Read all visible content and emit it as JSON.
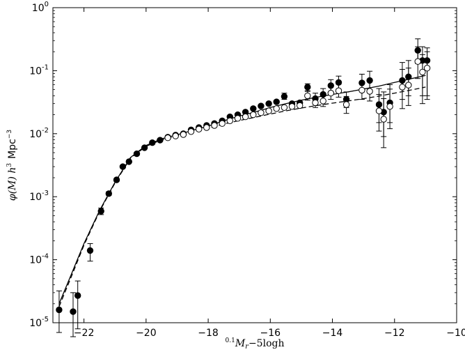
{
  "chart_data": {
    "type": "scatter",
    "xlabel": {
      "prefix": "0.1",
      "main": "M",
      "subscript": "r",
      "suffix": "−5logh"
    },
    "ylabel": {
      "phi": "φ(M) h",
      "exp3": "3",
      "unit": "Mpc",
      "exp_unit": "−3"
    },
    "xlim": [
      -23.0,
      -10.0
    ],
    "ylim_log10": [
      -5,
      0
    ],
    "xscale": "linear",
    "yscale": "log",
    "grid": false,
    "x_ticks": [
      {
        "value": -22,
        "label": "−22"
      },
      {
        "value": -20,
        "label": "−20"
      },
      {
        "value": -18,
        "label": "−18"
      },
      {
        "value": -16,
        "label": "−16"
      },
      {
        "value": -14,
        "label": "−14"
      },
      {
        "value": -12,
        "label": "−12"
      },
      {
        "value": -10,
        "label": "−10"
      }
    ],
    "y_ticks": [
      {
        "exp": -5,
        "base": "10",
        "sup": "-5"
      },
      {
        "exp": -4,
        "base": "10",
        "sup": "-4"
      },
      {
        "exp": -3,
        "base": "10",
        "sup": "-3"
      },
      {
        "exp": -2,
        "base": "10",
        "sup": "-2"
      },
      {
        "exp": -1,
        "base": "10",
        "sup": "-1"
      },
      {
        "exp": 0,
        "base": "10",
        "sup": "0"
      }
    ],
    "series": [
      {
        "marker": "filled-circle",
        "color": "#000000",
        "points": [
          {
            "x": -22.8,
            "y": 1.6e-05,
            "ylo": 7e-06,
            "yhi": 3.2e-05
          },
          {
            "x": -22.35,
            "y": 1.5e-05,
            "ylo": 6e-06,
            "yhi": 3e-05
          },
          {
            "x": -22.2,
            "y": 2.7e-05,
            "ylo": 8e-06,
            "yhi": 4.6e-05
          },
          {
            "x": -21.8,
            "y": 0.00014,
            "ylo": 9.5e-05,
            "yhi": 0.00018
          },
          {
            "x": -21.45,
            "y": 0.00059,
            "ylo": 0.00052,
            "yhi": 0.00066
          },
          {
            "x": -21.2,
            "y": 0.00112,
            "ylo": 0.00105,
            "yhi": 0.0012
          },
          {
            "x": -20.95,
            "y": 0.00185,
            "ylo": 0.00175,
            "yhi": 0.00195
          },
          {
            "x": -20.75,
            "y": 0.003
          },
          {
            "x": -20.55,
            "y": 0.0036
          },
          {
            "x": -20.3,
            "y": 0.0048
          },
          {
            "x": -20.05,
            "y": 0.006
          },
          {
            "x": -19.8,
            "y": 0.0072
          },
          {
            "x": -19.55,
            "y": 0.0079
          },
          {
            "x": -19.3,
            "y": 0.0088
          },
          {
            "x": -19.05,
            "y": 0.0095
          },
          {
            "x": -18.8,
            "y": 0.01
          },
          {
            "x": -18.55,
            "y": 0.0115
          },
          {
            "x": -18.3,
            "y": 0.0125
          },
          {
            "x": -18.05,
            "y": 0.0135
          },
          {
            "x": -17.8,
            "y": 0.0145
          },
          {
            "x": -17.55,
            "y": 0.016
          },
          {
            "x": -17.3,
            "y": 0.0185
          },
          {
            "x": -17.05,
            "y": 0.02
          },
          {
            "x": -16.8,
            "y": 0.022
          },
          {
            "x": -16.55,
            "y": 0.025
          },
          {
            "x": -16.3,
            "y": 0.0275
          },
          {
            "x": -16.05,
            "y": 0.03
          },
          {
            "x": -15.8,
            "y": 0.032
          },
          {
            "x": -15.55,
            "y": 0.039,
            "ylo": 0.035,
            "yhi": 0.044
          },
          {
            "x": -15.3,
            "y": 0.03
          },
          {
            "x": -15.05,
            "y": 0.031
          },
          {
            "x": -14.8,
            "y": 0.055,
            "ylo": 0.048,
            "yhi": 0.062
          },
          {
            "x": -14.55,
            "y": 0.036,
            "ylo": 0.029,
            "yhi": 0.044
          },
          {
            "x": -14.3,
            "y": 0.042,
            "ylo": 0.034,
            "yhi": 0.052
          },
          {
            "x": -14.05,
            "y": 0.058,
            "ylo": 0.046,
            "yhi": 0.072
          },
          {
            "x": -13.8,
            "y": 0.065,
            "ylo": 0.051,
            "yhi": 0.082
          },
          {
            "x": -13.55,
            "y": 0.035,
            "ylo": 0.026,
            "yhi": 0.046
          },
          {
            "x": -13.05,
            "y": 0.064,
            "ylo": 0.046,
            "yhi": 0.088
          },
          {
            "x": -12.8,
            "y": 0.07,
            "ylo": 0.05,
            "yhi": 0.098
          },
          {
            "x": -12.5,
            "y": 0.029,
            "ylo": 0.015,
            "yhi": 0.052
          },
          {
            "x": -12.35,
            "y": 0.022,
            "ylo": 0.009,
            "yhi": 0.046
          },
          {
            "x": -12.15,
            "y": 0.031,
            "ylo": 0.015,
            "yhi": 0.06
          },
          {
            "x": -11.75,
            "y": 0.07,
            "ylo": 0.035,
            "yhi": 0.135
          },
          {
            "x": -11.55,
            "y": 0.08,
            "ylo": 0.04,
            "yhi": 0.145
          },
          {
            "x": -11.25,
            "y": 0.21,
            "ylo": 0.13,
            "yhi": 0.32
          },
          {
            "x": -11.1,
            "y": 0.145,
            "ylo": 0.04,
            "yhi": 0.24
          },
          {
            "x": -10.95,
            "y": 0.145,
            "ylo": 0.04,
            "yhi": 0.23
          }
        ]
      },
      {
        "marker": "open-circle",
        "color": "#000000",
        "points": [
          {
            "x": -19.3,
            "y": 0.0086
          },
          {
            "x": -19.05,
            "y": 0.0092
          },
          {
            "x": -18.8,
            "y": 0.0097
          },
          {
            "x": -18.55,
            "y": 0.0108
          },
          {
            "x": -18.3,
            "y": 0.0118
          },
          {
            "x": -18.05,
            "y": 0.0125
          },
          {
            "x": -17.8,
            "y": 0.0135
          },
          {
            "x": -17.55,
            "y": 0.0145
          },
          {
            "x": -17.3,
            "y": 0.016
          },
          {
            "x": -17.05,
            "y": 0.0175
          },
          {
            "x": -16.8,
            "y": 0.0185
          },
          {
            "x": -16.55,
            "y": 0.02
          },
          {
            "x": -16.3,
            "y": 0.0215
          },
          {
            "x": -16.05,
            "y": 0.023
          },
          {
            "x": -15.8,
            "y": 0.025
          },
          {
            "x": -15.55,
            "y": 0.026
          },
          {
            "x": -15.3,
            "y": 0.027
          },
          {
            "x": -15.05,
            "y": 0.028
          },
          {
            "x": -14.8,
            "y": 0.04,
            "ylo": 0.034,
            "yhi": 0.047
          },
          {
            "x": -14.55,
            "y": 0.031,
            "ylo": 0.026,
            "yhi": 0.038
          },
          {
            "x": -14.3,
            "y": 0.033,
            "ylo": 0.027,
            "yhi": 0.041
          },
          {
            "x": -14.05,
            "y": 0.044,
            "ylo": 0.035,
            "yhi": 0.055
          },
          {
            "x": -13.8,
            "y": 0.048,
            "ylo": 0.038,
            "yhi": 0.061
          },
          {
            "x": -13.55,
            "y": 0.029,
            "ylo": 0.021,
            "yhi": 0.039
          },
          {
            "x": -13.05,
            "y": 0.049,
            "ylo": 0.035,
            "yhi": 0.068
          },
          {
            "x": -12.8,
            "y": 0.047,
            "ylo": 0.033,
            "yhi": 0.067
          },
          {
            "x": -12.5,
            "y": 0.023,
            "ylo": 0.011,
            "yhi": 0.042
          },
          {
            "x": -12.35,
            "y": 0.017,
            "ylo": 0.006,
            "yhi": 0.036
          },
          {
            "x": -12.15,
            "y": 0.027,
            "ylo": 0.012,
            "yhi": 0.051
          },
          {
            "x": -11.75,
            "y": 0.055,
            "ylo": 0.025,
            "yhi": 0.105
          },
          {
            "x": -11.55,
            "y": 0.059,
            "ylo": 0.028,
            "yhi": 0.11
          },
          {
            "x": -11.25,
            "y": 0.14,
            "ylo": 0.075,
            "yhi": 0.24
          },
          {
            "x": -11.1,
            "y": 0.095,
            "ylo": 0.03,
            "yhi": 0.18
          },
          {
            "x": -10.95,
            "y": 0.11,
            "ylo": 0.035,
            "yhi": 0.2
          }
        ]
      },
      {
        "line": "solid",
        "color": "#000000",
        "points": [
          {
            "x": -22.8,
            "y": 2e-05
          },
          {
            "x": -22.4,
            "y": 6e-05
          },
          {
            "x": -22.0,
            "y": 0.00018
          },
          {
            "x": -21.5,
            "y": 0.0006
          },
          {
            "x": -21.0,
            "y": 0.0017
          },
          {
            "x": -20.5,
            "y": 0.0042
          },
          {
            "x": -20.0,
            "y": 0.0065
          },
          {
            "x": -19.5,
            "y": 0.0083
          },
          {
            "x": -19.0,
            "y": 0.0096
          },
          {
            "x": -18.5,
            "y": 0.0113
          },
          {
            "x": -18.0,
            "y": 0.0132
          },
          {
            "x": -17.5,
            "y": 0.016
          },
          {
            "x": -17.0,
            "y": 0.019
          },
          {
            "x": -16.5,
            "y": 0.022
          },
          {
            "x": -16.0,
            "y": 0.026
          },
          {
            "x": -15.5,
            "y": 0.03
          },
          {
            "x": -15.0,
            "y": 0.034
          },
          {
            "x": -14.5,
            "y": 0.038
          },
          {
            "x": -14.0,
            "y": 0.042
          },
          {
            "x": -13.5,
            "y": 0.046
          },
          {
            "x": -13.0,
            "y": 0.051
          },
          {
            "x": -12.5,
            "y": 0.057
          },
          {
            "x": -12.0,
            "y": 0.065
          },
          {
            "x": -11.5,
            "y": 0.074
          },
          {
            "x": -11.0,
            "y": 0.084
          }
        ]
      },
      {
        "line": "dashed",
        "color": "#000000",
        "points": [
          {
            "x": -22.8,
            "y": 1.8e-05
          },
          {
            "x": -22.4,
            "y": 5.5e-05
          },
          {
            "x": -22.0,
            "y": 0.00017
          },
          {
            "x": -21.5,
            "y": 0.00058
          },
          {
            "x": -21.0,
            "y": 0.00165
          },
          {
            "x": -20.5,
            "y": 0.0041
          },
          {
            "x": -20.0,
            "y": 0.0063
          },
          {
            "x": -19.5,
            "y": 0.008
          },
          {
            "x": -19.0,
            "y": 0.0092
          },
          {
            "x": -18.5,
            "y": 0.0106
          },
          {
            "x": -18.0,
            "y": 0.0122
          },
          {
            "x": -17.5,
            "y": 0.0142
          },
          {
            "x": -17.0,
            "y": 0.0162
          },
          {
            "x": -16.5,
            "y": 0.0182
          },
          {
            "x": -16.0,
            "y": 0.0205
          },
          {
            "x": -15.5,
            "y": 0.023
          },
          {
            "x": -15.0,
            "y": 0.0255
          },
          {
            "x": -14.5,
            "y": 0.028
          },
          {
            "x": -14.0,
            "y": 0.0305
          },
          {
            "x": -13.5,
            "y": 0.033
          },
          {
            "x": -13.0,
            "y": 0.036
          },
          {
            "x": -12.5,
            "y": 0.0395
          },
          {
            "x": -12.0,
            "y": 0.044
          },
          {
            "x": -11.5,
            "y": 0.049
          },
          {
            "x": -11.0,
            "y": 0.055
          }
        ]
      }
    ]
  }
}
